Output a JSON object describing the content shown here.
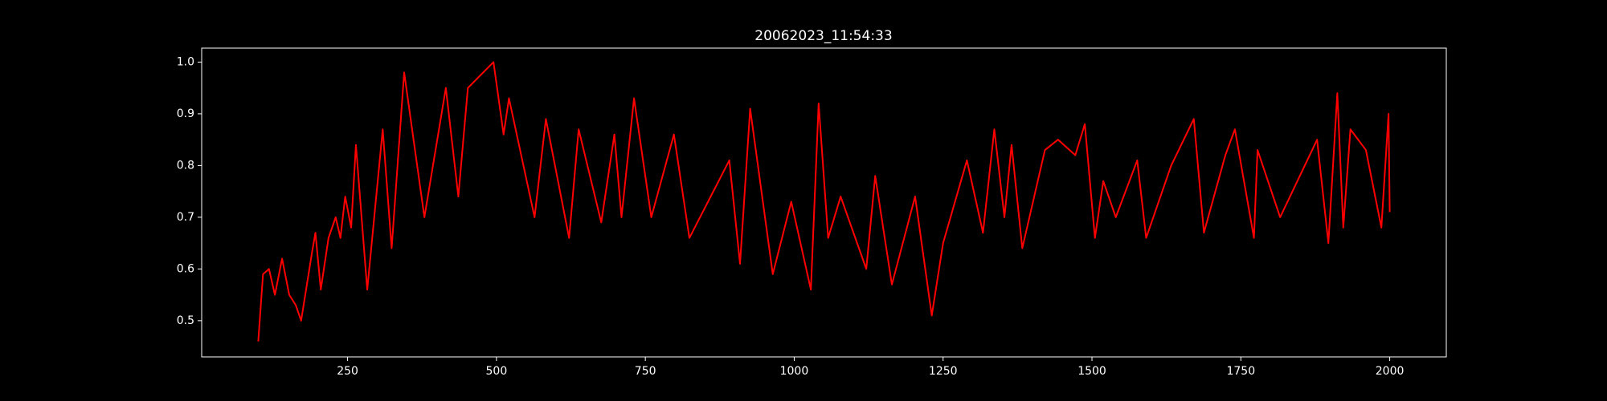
{
  "chart_data": {
    "type": "line",
    "title": "20062023_11:54:33",
    "x": [
      100,
      108,
      118,
      128,
      140,
      152,
      163,
      172,
      190,
      196,
      205,
      218,
      230,
      238,
      246,
      256,
      264,
      283,
      309,
      324,
      345,
      379,
      415,
      436,
      452,
      495,
      512,
      521,
      564,
      583,
      622,
      638,
      676,
      698,
      710,
      731,
      760,
      798,
      824,
      891,
      909,
      926,
      964,
      995,
      1028,
      1041,
      1057,
      1078,
      1121,
      1136,
      1164,
      1203,
      1231,
      1250,
      1290,
      1317,
      1336,
      1353,
      1365,
      1383,
      1421,
      1443,
      1472,
      1488,
      1505,
      1519,
      1540,
      1576,
      1591,
      1633,
      1671,
      1688,
      1724,
      1740,
      1772,
      1778,
      1816,
      1878,
      1897,
      1912,
      1922,
      1934,
      1960,
      1986,
      1998,
      2000
    ],
    "series": [
      {
        "color": "#ff0000",
        "values": [
          0.46,
          0.59,
          0.6,
          0.55,
          0.62,
          0.55,
          0.53,
          0.5,
          0.63,
          0.67,
          0.56,
          0.66,
          0.7,
          0.66,
          0.74,
          0.68,
          0.84,
          0.56,
          0.87,
          0.64,
          0.98,
          0.7,
          0.95,
          0.74,
          0.95,
          1.0,
          0.86,
          0.93,
          0.7,
          0.89,
          0.66,
          0.87,
          0.69,
          0.86,
          0.7,
          0.93,
          0.7,
          0.86,
          0.66,
          0.81,
          0.61,
          0.91,
          0.59,
          0.73,
          0.56,
          0.92,
          0.66,
          0.74,
          0.6,
          0.78,
          0.57,
          0.74,
          0.51,
          0.65,
          0.81,
          0.67,
          0.87,
          0.7,
          0.84,
          0.64,
          0.83,
          0.85,
          0.82,
          0.88,
          0.66,
          0.77,
          0.7,
          0.81,
          0.66,
          0.8,
          0.89,
          0.67,
          0.82,
          0.87,
          0.66,
          0.83,
          0.7,
          0.85,
          0.65,
          0.94,
          0.68,
          0.87,
          0.83,
          0.68,
          0.9,
          0.71
        ]
      }
    ],
    "xlim": [
      5,
      2095
    ],
    "xticks": [
      250,
      500,
      750,
      1000,
      1250,
      1500,
      1750,
      2000
    ],
    "ylim": [
      0.43,
      1.027
    ],
    "yticks": [
      0.5,
      0.6,
      0.7,
      0.8,
      0.9,
      {
        "value": 1.0,
        "label": "1.0"
      }
    ]
  }
}
